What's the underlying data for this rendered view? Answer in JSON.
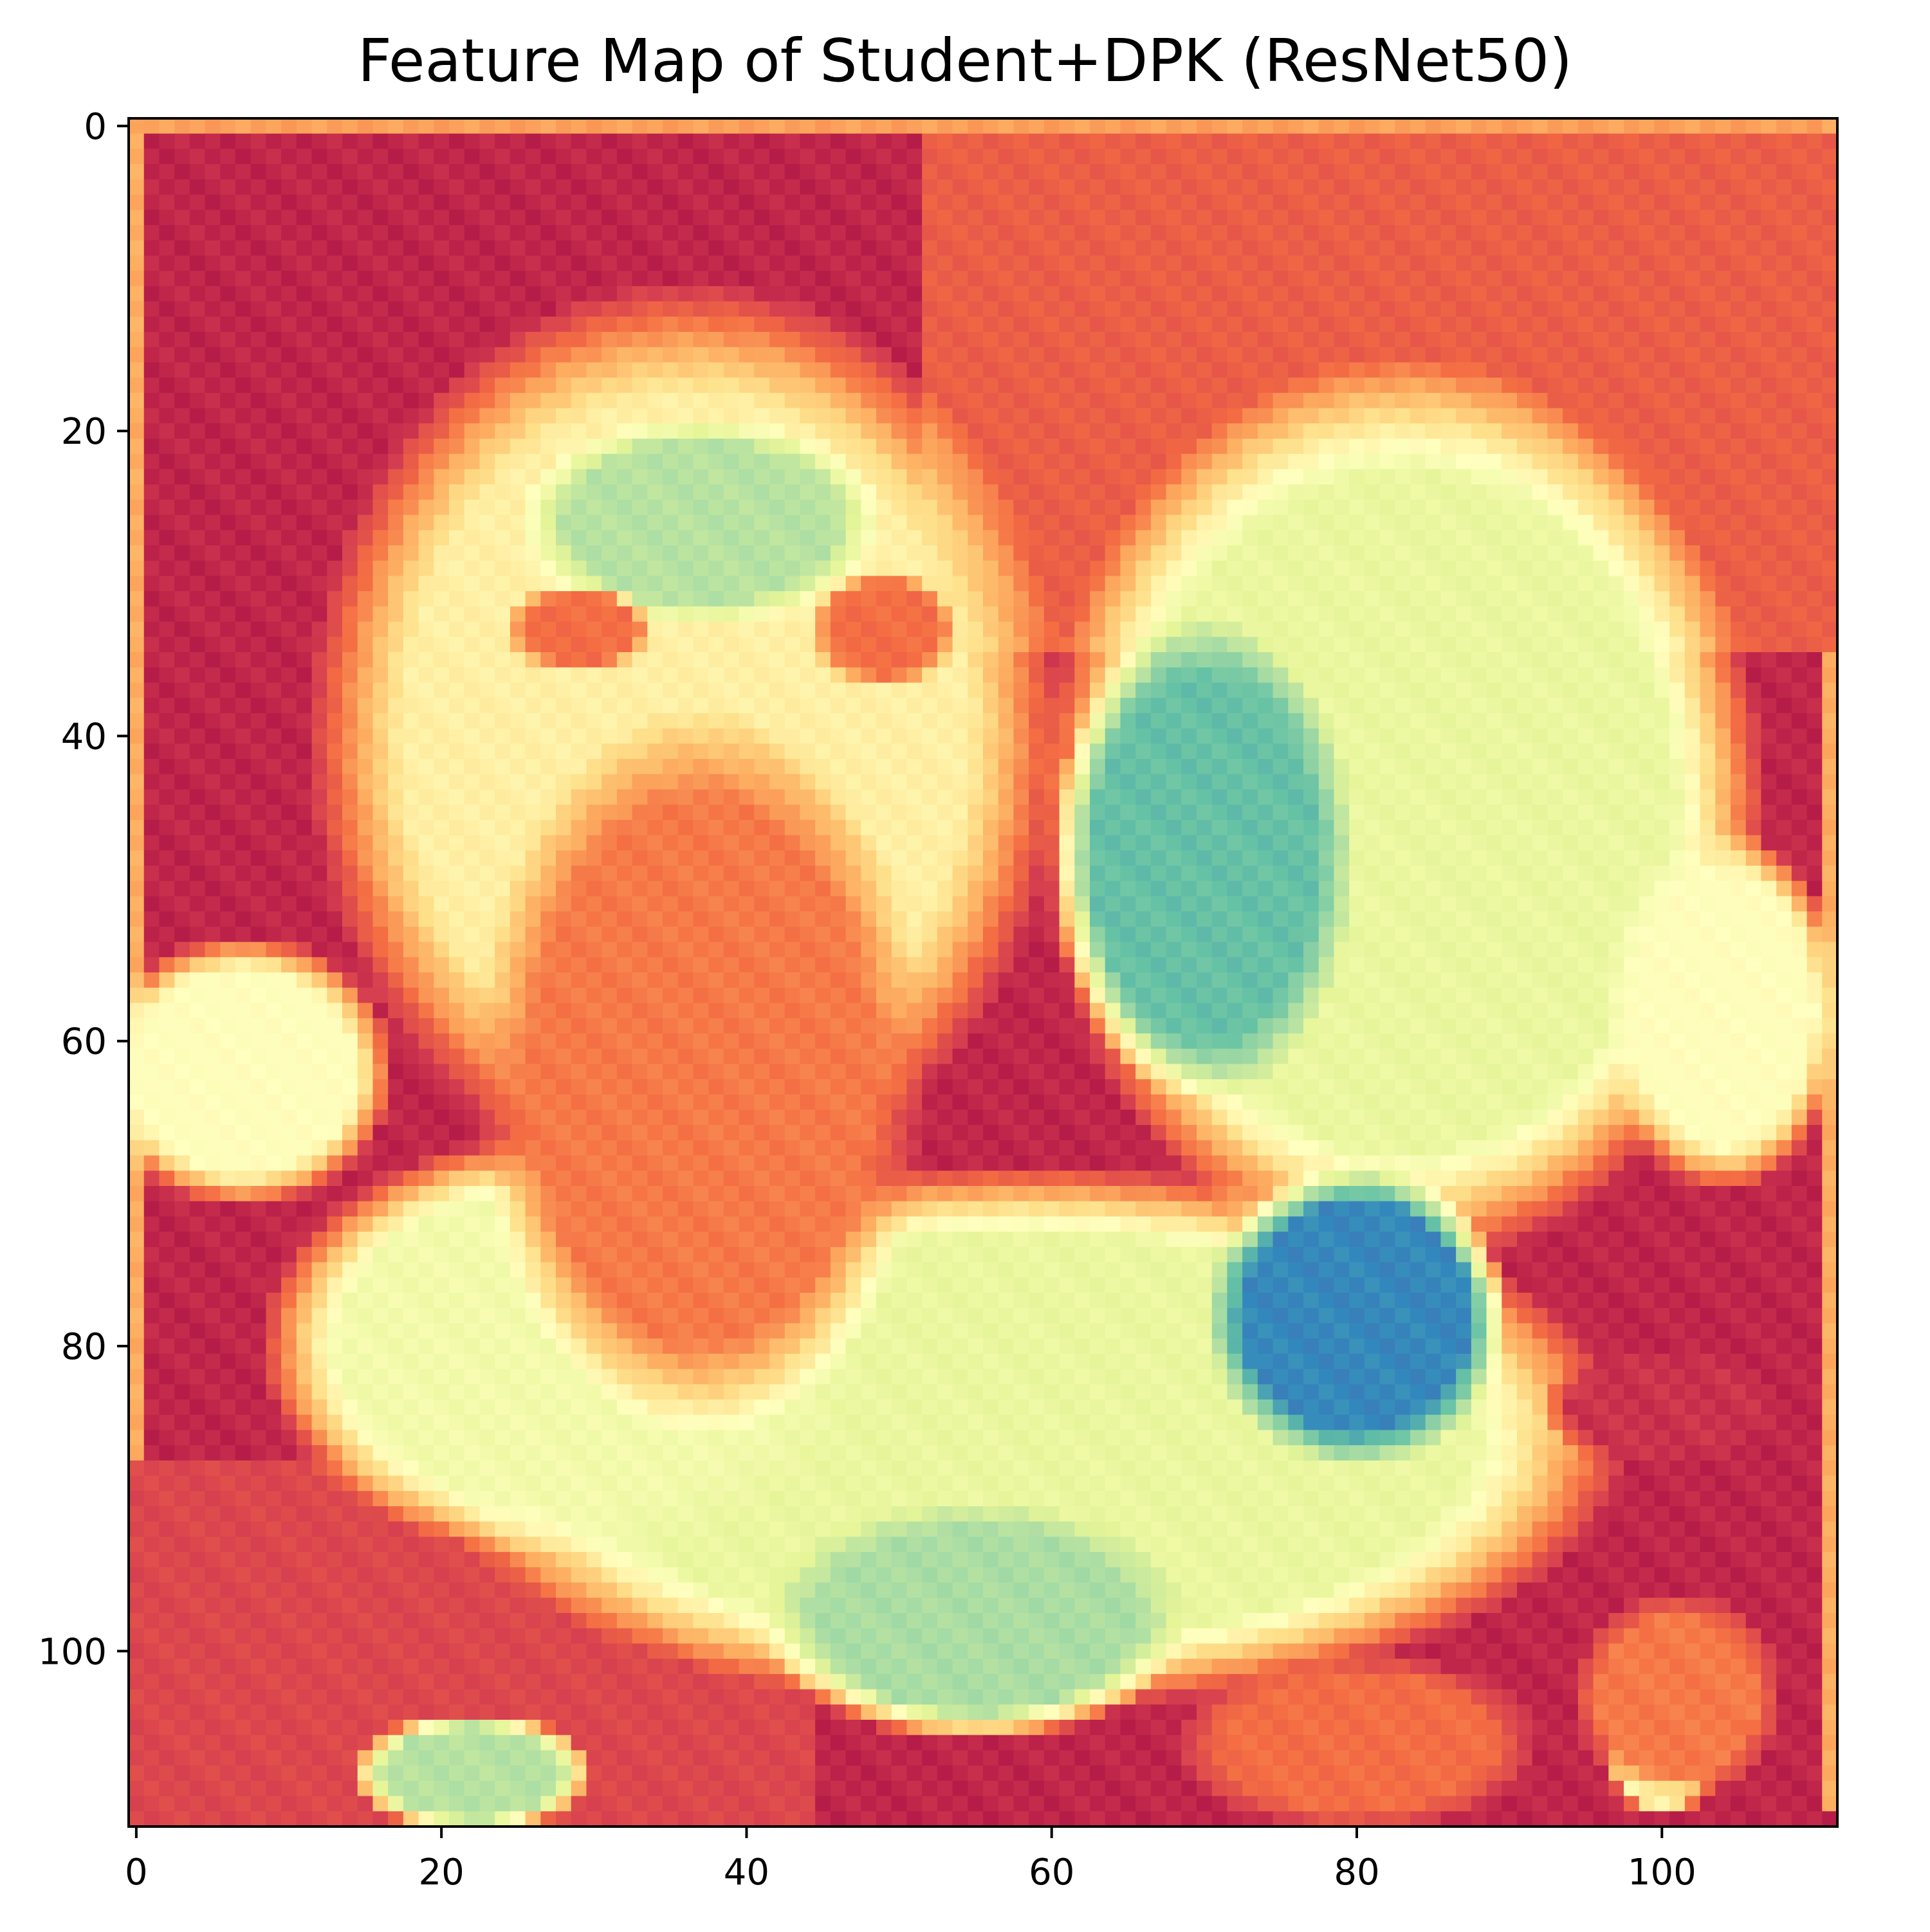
{
  "chart_data": {
    "type": "heatmap",
    "title": "Feature Map of Student+DPK (ResNet50)",
    "xlabel": "",
    "ylabel": "",
    "colormap": "Spectral",
    "grid_size": [
      112,
      112
    ],
    "xlim": [
      0,
      111
    ],
    "ylim": [
      111,
      0
    ],
    "x_ticks": [
      0,
      20,
      40,
      60,
      80,
      100
    ],
    "y_ticks": [
      0,
      20,
      40,
      60,
      80,
      100
    ],
    "x_tick_labels": [
      "0",
      "20",
      "40",
      "60",
      "80",
      "100"
    ],
    "y_tick_labels": [
      "0",
      "20",
      "40",
      "60",
      "80",
      "100"
    ],
    "value_range": [
      0,
      1
    ],
    "background_value": 0.06,
    "regions": [
      {
        "kind": "rect",
        "x": [
          0,
          111
        ],
        "y": [
          0,
          1
        ],
        "value": 0.28
      },
      {
        "kind": "rect",
        "x": [
          0,
          1
        ],
        "y": [
          0,
          111
        ],
        "value": 0.3
      },
      {
        "kind": "rect",
        "x": [
          111,
          112
        ],
        "y": [
          0,
          111
        ],
        "value": 0.3
      },
      {
        "kind": "rect",
        "x": [
          52,
          112
        ],
        "y": [
          1,
          35
        ],
        "value": 0.17
      },
      {
        "kind": "rect",
        "x": [
          0,
          45
        ],
        "y": [
          88,
          112
        ],
        "value": 0.12
      },
      {
        "kind": "ellipse",
        "cx": 36,
        "cy": 40,
        "rx": 25,
        "ry": 30,
        "value": 0.45
      },
      {
        "kind": "ellipse",
        "cx": 83,
        "cy": 45,
        "rx": 24,
        "ry": 30,
        "value": 0.58
      },
      {
        "kind": "ellipse",
        "cx": 58,
        "cy": 86,
        "rx": 40,
        "ry": 18,
        "value": 0.58
      },
      {
        "kind": "ellipse",
        "cx": 7,
        "cy": 62,
        "rx": 10,
        "ry": 9,
        "value": 0.5
      },
      {
        "kind": "ellipse",
        "cx": 104,
        "cy": 58,
        "rx": 8,
        "ry": 12,
        "value": 0.5
      },
      {
        "kind": "ellipse",
        "cx": 28,
        "cy": 80,
        "rx": 20,
        "ry": 14,
        "value": 0.55
      },
      {
        "kind": "ellipse",
        "cx": 37,
        "cy": 26,
        "rx": 12,
        "ry": 7,
        "value": 0.68
      },
      {
        "kind": "ellipse",
        "cx": 70,
        "cy": 48,
        "rx": 10,
        "ry": 16,
        "value": 0.8
      },
      {
        "kind": "ellipse",
        "cx": 80,
        "cy": 78,
        "rx": 10,
        "ry": 10,
        "value": 0.9
      },
      {
        "kind": "ellipse",
        "cx": 55,
        "cy": 98,
        "rx": 14,
        "ry": 8,
        "value": 0.7
      },
      {
        "kind": "ellipse",
        "cx": 22,
        "cy": 108,
        "rx": 8,
        "ry": 4,
        "value": 0.68
      },
      {
        "kind": "ellipse",
        "cx": 100,
        "cy": 106,
        "rx": 4,
        "ry": 5,
        "value": 0.6
      },
      {
        "kind": "ellipse",
        "cx": 37,
        "cy": 62,
        "rx": 15,
        "ry": 24,
        "value": 0.22
      },
      {
        "kind": "ellipse",
        "cx": 29,
        "cy": 33,
        "rx": 5,
        "ry": 3,
        "value": 0.2
      },
      {
        "kind": "ellipse",
        "cx": 49,
        "cy": 33,
        "rx": 5,
        "ry": 4,
        "value": 0.2
      },
      {
        "kind": "ellipse",
        "cx": 100,
        "cy": 84,
        "rx": 8,
        "ry": 4,
        "value": 0.08
      },
      {
        "kind": "ellipse",
        "cx": 80,
        "cy": 106,
        "rx": 12,
        "ry": 6,
        "value": 0.2
      },
      {
        "kind": "ellipse",
        "cx": 101,
        "cy": 103,
        "rx": 7,
        "ry": 7,
        "value": 0.22
      }
    ]
  }
}
